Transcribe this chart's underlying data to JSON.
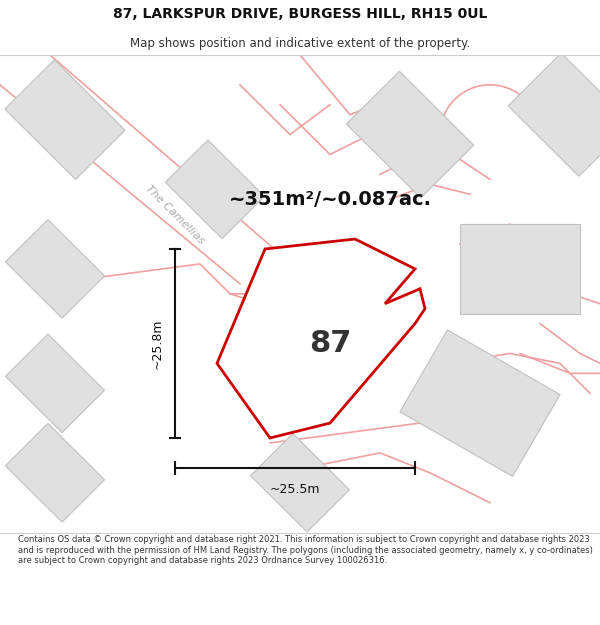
{
  "title": "87, LARKSPUR DRIVE, BURGESS HILL, RH15 0UL",
  "subtitle": "Map shows position and indicative extent of the property.",
  "area_text": "~351m²/~0.087ac.",
  "dim_vertical": "~25.8m",
  "dim_horizontal": "~25.5m",
  "plot_number": "87",
  "road_label": "The Camellias",
  "footer": "Contains OS data © Crown copyright and database right 2021. This information is subject to Crown copyright and database rights 2023 and is reproduced with the permission of HM Land Registry. The polygons (including the associated geometry, namely x, y co-ordinates) are subject to Crown copyright and database rights 2023 Ordnance Survey 100026316.",
  "bg_color": "#ffffff",
  "map_bg": "#f7f7f7",
  "plot_fill": "#ffffff",
  "plot_edge": "#cc0000",
  "building_fill": "#e0e0e0",
  "building_edge": "#c0c0c0",
  "road_line_color": "#f0a0a0"
}
